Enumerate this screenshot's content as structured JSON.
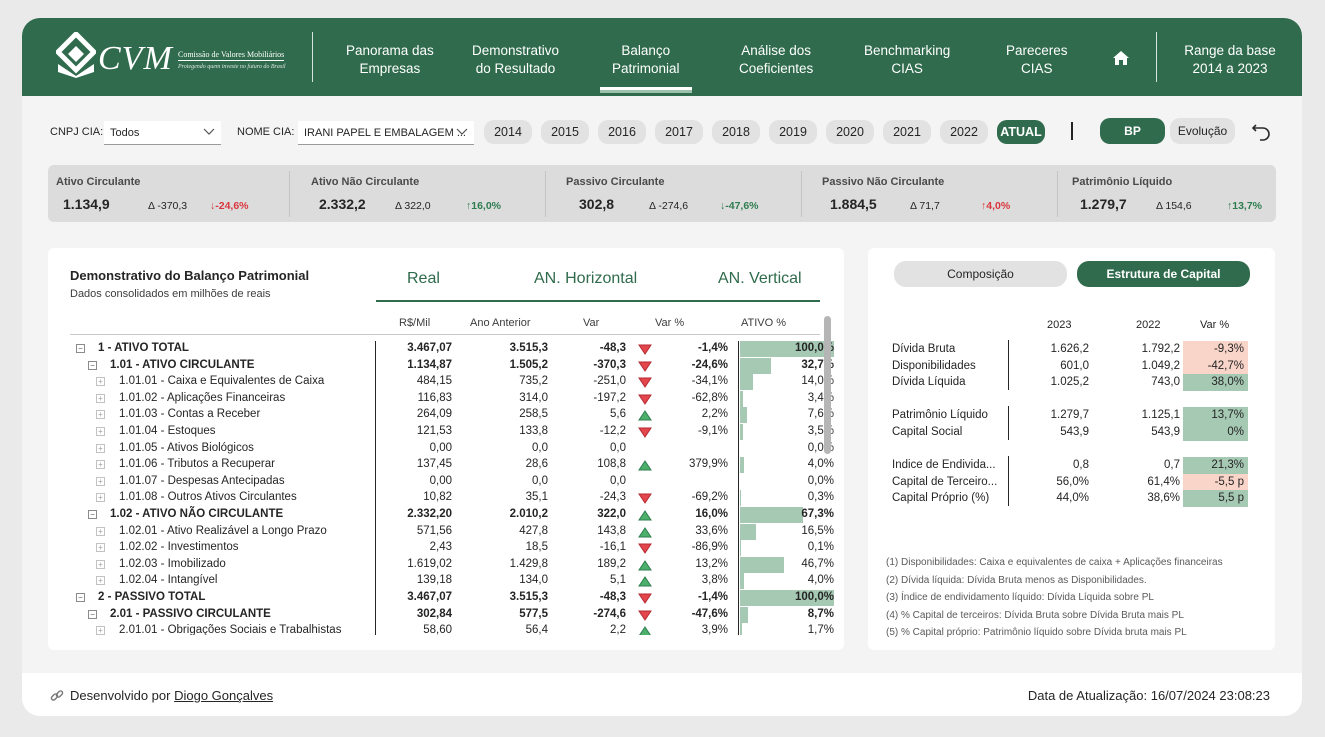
{
  "colors": {
    "brand": "#2f6b4c",
    "positive": "#2e7d4f",
    "negative": "#d9363e",
    "bar": "#a6c9b4",
    "pos_cell": "#a6c9b4",
    "neg_cell": "#f9d4c9"
  },
  "logo": {
    "text": "CVM",
    "sub1": "Comissão de Valores Mobiliários",
    "sub2": "Protegendo quem investe no futuro do Brasil"
  },
  "nav": [
    {
      "line1": "Panorama das",
      "line2": "Empresas"
    },
    {
      "line1": "Demonstrativo",
      "line2": "do Resultado"
    },
    {
      "line1": "Balanço",
      "line2": "Patrimonial"
    },
    {
      "line1": "Análise dos",
      "line2": "Coeficientes"
    },
    {
      "line1": "Benchmarking",
      "line2": "CIAS"
    },
    {
      "line1": "Pareceres",
      "line2": "CIAS"
    }
  ],
  "home_icon": "home-icon",
  "range": {
    "line1": "Range da base",
    "line2": "2014 a 2023"
  },
  "filters": {
    "cnpj_label": "CNPJ CIA:",
    "cnpj_value": "Todos",
    "nome_label": "NOME CIA:",
    "nome_value": "IRANI PAPEL E EMBALAGEM ...",
    "years": [
      "2014",
      "2015",
      "2016",
      "2017",
      "2018",
      "2019",
      "2020",
      "2021",
      "2022",
      "ATUAL"
    ],
    "selected_year": "ATUAL",
    "view_bp": "BP",
    "view_evo": "Evolução"
  },
  "kpis": [
    {
      "title": "Ativo Circulante",
      "value": "1.134,9",
      "delta": "Δ -370,3",
      "pct": "↓-24,6%",
      "dir": "neg"
    },
    {
      "title": "Ativo Não Circulante",
      "value": "2.332,2",
      "delta": "Δ 322,0",
      "pct": "↑16,0%",
      "dir": "pos"
    },
    {
      "title": "Passivo Circulante",
      "value": "302,8",
      "delta": "Δ -274,6",
      "pct": "↓-47,6%",
      "dir": "pos"
    },
    {
      "title": "Passivo Não Circulante",
      "value": "1.884,5",
      "delta": "Δ 71,7",
      "pct": "↑4,0%",
      "dir": "neg"
    },
    {
      "title": "Patrimônio Líquido",
      "value": "1.279,7",
      "delta": "Δ 154,6",
      "pct": "↑13,7%",
      "dir": "pos"
    }
  ],
  "bp": {
    "title": "Demonstrativo do Balanço Patrimonial",
    "subtitle": "Dados consolidados em milhões de reais",
    "groups": [
      "Real",
      "AN. Horizontal",
      "AN. Vertical"
    ],
    "headers": [
      "R$/Mil",
      "Ano Anterior",
      "Var",
      "Var %",
      "ATIVO %"
    ],
    "rows": [
      {
        "label": "1 - ATIVO TOTAL",
        "level": 0,
        "bold": true,
        "exp": "minus",
        "real": "3.467,07",
        "prev": "3.515,3",
        "var": "-48,3",
        "trend": "down",
        "varp": "-1,4%",
        "vert": "100,0%",
        "vert_value": 100.0
      },
      {
        "label": "1.01 - ATIVO CIRCULANTE",
        "level": 1,
        "bold": true,
        "exp": "minus",
        "real": "1.134,87",
        "prev": "1.505,2",
        "var": "-370,3",
        "trend": "down",
        "varp": "-24,6%",
        "vert": "32,7%",
        "vert_value": 32.7
      },
      {
        "label": "1.01.01 - Caixa e Equivalentes de Caixa",
        "level": 2,
        "bold": false,
        "exp": "plus",
        "real": "484,15",
        "prev": "735,2",
        "var": "-251,0",
        "trend": "down",
        "varp": "-34,1%",
        "vert": "14,0%",
        "vert_value": 14.0
      },
      {
        "label": "1.01.02 - Aplicações Financeiras",
        "level": 2,
        "bold": false,
        "exp": "plus",
        "real": "116,83",
        "prev": "314,0",
        "var": "-197,2",
        "trend": "down",
        "varp": "-62,8%",
        "vert": "3,4%",
        "vert_value": 3.4
      },
      {
        "label": "1.01.03 - Contas a Receber",
        "level": 2,
        "bold": false,
        "exp": "plus",
        "real": "264,09",
        "prev": "258,5",
        "var": "5,6",
        "trend": "up",
        "varp": "2,2%",
        "vert": "7,6%",
        "vert_value": 7.6
      },
      {
        "label": "1.01.04 - Estoques",
        "level": 2,
        "bold": false,
        "exp": "plus",
        "real": "121,53",
        "prev": "133,8",
        "var": "-12,2",
        "trend": "down",
        "varp": "-9,1%",
        "vert": "3,5%",
        "vert_value": 3.5
      },
      {
        "label": "1.01.05 - Ativos Biológicos",
        "level": 2,
        "bold": false,
        "exp": "plus",
        "real": "0,00",
        "prev": "0,0",
        "var": "0,0",
        "trend": "",
        "varp": "",
        "vert": "0,0%",
        "vert_value": 0.0
      },
      {
        "label": "1.01.06 - Tributos a Recuperar",
        "level": 2,
        "bold": false,
        "exp": "plus",
        "real": "137,45",
        "prev": "28,6",
        "var": "108,8",
        "trend": "up",
        "varp": "379,9%",
        "vert": "4,0%",
        "vert_value": 4.0
      },
      {
        "label": "1.01.07 - Despesas Antecipadas",
        "level": 2,
        "bold": false,
        "exp": "plus",
        "real": "0,00",
        "prev": "0,0",
        "var": "0,0",
        "trend": "",
        "varp": "",
        "vert": "0,0%",
        "vert_value": 0.0
      },
      {
        "label": "1.01.08 - Outros Ativos Circulantes",
        "level": 2,
        "bold": false,
        "exp": "plus",
        "real": "10,82",
        "prev": "35,1",
        "var": "-24,3",
        "trend": "down",
        "varp": "-69,2%",
        "vert": "0,3%",
        "vert_value": 0.3
      },
      {
        "label": "1.02 - ATIVO NÃO CIRCULANTE",
        "level": 1,
        "bold": true,
        "exp": "minus",
        "real": "2.332,20",
        "prev": "2.010,2",
        "var": "322,0",
        "trend": "up",
        "varp": "16,0%",
        "vert": "67,3%",
        "vert_value": 67.3
      },
      {
        "label": "1.02.01 - Ativo Realizável a Longo Prazo",
        "level": 2,
        "bold": false,
        "exp": "plus",
        "real": "571,56",
        "prev": "427,8",
        "var": "143,8",
        "trend": "up",
        "varp": "33,6%",
        "vert": "16,5%",
        "vert_value": 16.5
      },
      {
        "label": "1.02.02 - Investimentos",
        "level": 2,
        "bold": false,
        "exp": "plus",
        "real": "2,43",
        "prev": "18,5",
        "var": "-16,1",
        "trend": "down",
        "varp": "-86,9%",
        "vert": "0,1%",
        "vert_value": 0.1
      },
      {
        "label": "1.02.03 - Imobilizado",
        "level": 2,
        "bold": false,
        "exp": "plus",
        "real": "1.619,02",
        "prev": "1.429,8",
        "var": "189,2",
        "trend": "up",
        "varp": "13,2%",
        "vert": "46,7%",
        "vert_value": 46.7
      },
      {
        "label": "1.02.04 - Intangível",
        "level": 2,
        "bold": false,
        "exp": "plus",
        "real": "139,18",
        "prev": "134,0",
        "var": "5,1",
        "trend": "up",
        "varp": "3,8%",
        "vert": "4,0%",
        "vert_value": 4.0
      },
      {
        "label": "2 - PASSIVO TOTAL",
        "level": 0,
        "bold": true,
        "exp": "minus",
        "real": "3.467,07",
        "prev": "3.515,3",
        "var": "-48,3",
        "trend": "down",
        "varp": "-1,4%",
        "vert": "100,0%",
        "vert_value": 100.0
      },
      {
        "label": "2.01 - PASSIVO CIRCULANTE",
        "level": 1,
        "bold": true,
        "exp": "minus",
        "real": "302,84",
        "prev": "577,5",
        "var": "-274,6",
        "trend": "down",
        "varp": "-47,6%",
        "vert": "8,7%",
        "vert_value": 8.7
      },
      {
        "label": "2.01.01 - Obrigações Sociais e Trabalhistas",
        "level": 2,
        "bold": false,
        "exp": "plus",
        "real": "58,60",
        "prev": "56,4",
        "var": "2,2",
        "trend": "up",
        "varp": "3,9%",
        "vert": "1,7%",
        "vert_value": 1.7
      }
    ]
  },
  "cap": {
    "tab_off": "Composição",
    "tab_on": "Estrutura de Capital",
    "headers": [
      "2023",
      "2022",
      "Var %"
    ],
    "rows": [
      {
        "label": "Dívida Bruta",
        "y2023": "1.626,2",
        "y2022": "1.792,2",
        "var": "-9,3%",
        "sign": "neg"
      },
      {
        "label": "Disponibilidades",
        "y2023": "601,0",
        "y2022": "1.049,2",
        "var": "-42,7%",
        "sign": "neg"
      },
      {
        "label": "Dívida Líquida",
        "y2023": "1.025,2",
        "y2022": "743,0",
        "var": "38,0%",
        "sign": "pos"
      },
      {
        "label": "Patrimônio Líquido",
        "y2023": "1.279,7",
        "y2022": "1.125,1",
        "var": "13,7%",
        "sign": "pos"
      },
      {
        "label": "Capital Social",
        "y2023": "543,9",
        "y2022": "543,9",
        "var": "0%",
        "sign": "pos"
      },
      {
        "label": "Índice de Endivida...",
        "y2023": "0,8",
        "y2022": "0,7",
        "var": "21,3%",
        "sign": "pos"
      },
      {
        "label": "Capital de Terceiro...",
        "y2023": "56,0%",
        "y2022": "61,4%",
        "var": "-5,5 p",
        "sign": "neg"
      },
      {
        "label": "Capital Próprio (%)",
        "y2023": "44,0%",
        "y2022": "38,6%",
        "var": "5,5 p",
        "sign": "pos"
      }
    ],
    "notes": [
      "(1) Disponibilidades: Caixa e equivalentes de caixa + Aplicações financeiras",
      "(2) Dívida líquida: Dívida Bruta menos as Disponibilidades.",
      "(3) Índice de endividamento líquido: Dívida Líquida sobre PL",
      "(4) % Capital de terceiros: Dívida Bruta sobre Dívida Bruta mais PL",
      "(5) % Capital próprio: Patrimônio líquido sobre Dívida bruta mais PL"
    ]
  },
  "footer": {
    "dev_prefix": "Desenvolvido por",
    "dev_name": "Diogo Gonçalves",
    "updated": "Data de Atualização: 16/07/2024 23:08:23"
  }
}
